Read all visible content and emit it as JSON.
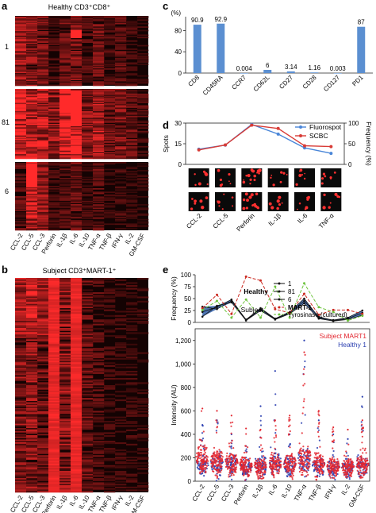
{
  "panels": {
    "a": {
      "letter": "a",
      "title": "Healthy CD3⁺CD8⁺",
      "row_labels": [
        "1",
        "81",
        "6"
      ]
    },
    "b": {
      "letter": "b",
      "title": "Subject CD3⁺MART-1⁺"
    },
    "c": {
      "letter": "c"
    },
    "d": {
      "letter": "d"
    },
    "e": {
      "letter": "e"
    }
  },
  "cytokines": [
    "CCL-2",
    "CCL-5",
    "CCL-3",
    "Perforin",
    "IL-1β",
    "IL-6",
    "IL-10",
    "TNF-α",
    "TNF-β",
    "IFN-γ",
    "IL-2",
    "GM-CSF"
  ],
  "d_cytokines": [
    "CCL-2",
    "CCL-5",
    "Perforin",
    "IL-1β",
    "IL-6",
    "TNF-α"
  ],
  "colors": {
    "heat_hi": "#ff2a2a",
    "heat_lo": "#140303",
    "bar": "#5b8fd1",
    "fluorospot": "#4a86d8",
    "scbc": "#d83b36",
    "mart1": "#cc2b22",
    "tyrosinase": "#6fc43f",
    "healthy_fill": "#2f5ea8",
    "healthy_line": "#111111",
    "violin_red": "#e3262f",
    "violin_blue": "#2b3fb0"
  },
  "chart_data": [
    {
      "panel": "a",
      "type": "heatmap",
      "title": "Healthy CD3⁺CD8⁺",
      "rows": [
        "1",
        "81",
        "6"
      ],
      "columns": [
        "CCL-2",
        "CCL-5",
        "CCL-3",
        "Perforin",
        "IL-1β",
        "IL-6",
        "IL-10",
        "TNF-α",
        "TNF-β",
        "IFN-γ",
        "IL-2",
        "GM-CSF"
      ],
      "column_mean_intensity": {
        "1": [
          0.55,
          0.45,
          0.35,
          0.15,
          0.3,
          0.4,
          0.2,
          0.35,
          0.2,
          0.25,
          0.15,
          0.1
        ],
        "81": [
          0.85,
          0.75,
          0.7,
          0.5,
          0.8,
          0.9,
          0.45,
          0.6,
          0.35,
          0.4,
          0.3,
          0.2
        ],
        "6": [
          0.25,
          0.65,
          0.5,
          0.15,
          0.2,
          0.3,
          0.15,
          0.25,
          0.1,
          0.15,
          0.1,
          0.08
        ]
      }
    },
    {
      "panel": "b",
      "type": "heatmap",
      "title": "Subject CD3⁺MART-1⁺",
      "columns": [
        "CCL-2",
        "CCL-5",
        "CCL-3",
        "Perforin",
        "IL-1β",
        "IL-6",
        "IL-10",
        "TNF-α",
        "TNF-β",
        "IFN-γ",
        "IL-2",
        "GM-CSF"
      ],
      "column_mean_intensity": [
        0.4,
        0.45,
        0.35,
        0.95,
        0.45,
        0.85,
        0.3,
        0.2,
        0.12,
        0.1,
        0.12,
        0.08
      ]
    },
    {
      "panel": "c",
      "type": "bar",
      "ylabel": "(%)",
      "categories": [
        "CD8",
        "CD45RA",
        "CCR7",
        "CD62L",
        "CD27",
        "CD28",
        "CD127",
        "PD1"
      ],
      "values": [
        90.9,
        92.9,
        0.004,
        6,
        3.14,
        1.16,
        0.003,
        87
      ],
      "data_labels": [
        "90.9",
        "92.9",
        "0.004",
        "6",
        "3.14",
        "1.16",
        "0.003",
        "87"
      ],
      "yticks": [
        "0",
        "40",
        "80"
      ],
      "ylim": [
        0,
        100
      ]
    },
    {
      "panel": "d",
      "type": "line",
      "x": [
        "CCL-2",
        "CCL-5",
        "Perforin",
        "IL-1β",
        "IL-6",
        "TNF-α"
      ],
      "ylabel": "Spots",
      "y2label": "Frequency (%)",
      "ylim": [
        0,
        30
      ],
      "yticks": [
        "0",
        "15",
        "30"
      ],
      "y2lim": [
        0,
        100
      ],
      "y2ticks": [
        "0",
        "50",
        "100"
      ],
      "series": [
        {
          "name": "Fluorospot",
          "axis": "y",
          "values": [
            11,
            14,
            29,
            22,
            12,
            8
          ]
        },
        {
          "name": "SCBC",
          "axis": "y2",
          "values": [
            35,
            47,
            95,
            87,
            45,
            43
          ]
        }
      ]
    },
    {
      "panel": "e-top",
      "type": "line",
      "ylabel": "Frequency (%)",
      "x": [
        "CCL-2",
        "CCL-5",
        "CCL-3",
        "Perforin",
        "IL-1β",
        "IL-6",
        "IL-10",
        "TNF-α",
        "TNF-β",
        "IFN-γ",
        "IL-2",
        "GM-CSF"
      ],
      "ylim": [
        0,
        100
      ],
      "yticks": [
        "0",
        "25",
        "50",
        "75",
        "100"
      ],
      "legend_groups": [
        "Healthy",
        "Subject"
      ],
      "series": [
        {
          "name": "1",
          "group": "Healthy",
          "values": [
            33,
            28,
            45,
            6,
            30,
            8,
            22,
            50,
            10,
            5,
            10,
            25
          ]
        },
        {
          "name": "81",
          "group": "Healthy",
          "values": [
            22,
            32,
            48,
            5,
            28,
            7,
            20,
            45,
            12,
            4,
            8,
            20
          ]
        },
        {
          "name": "6",
          "group": "Healthy",
          "values": [
            12,
            35,
            42,
            4,
            25,
            6,
            18,
            40,
            8,
            3,
            6,
            15
          ]
        },
        {
          "name": "MART-1",
          "group": "Subject",
          "values": [
            30,
            58,
            18,
            96,
            88,
            28,
            20,
            60,
            16,
            26,
            26,
            18
          ]
        },
        {
          "name": "Tyrosinase (cultured)",
          "group": "Subject",
          "values": [
            26,
            45,
            10,
            48,
            10,
            75,
            10,
            82,
            32,
            22,
            4,
            14
          ]
        }
      ]
    },
    {
      "panel": "e-bottom",
      "type": "scatter",
      "ylabel": "Intensity (AU)",
      "x": [
        "CCL-2",
        "CCL-5",
        "CCL-3",
        "Perforin",
        "IL-1β",
        "IL-6",
        "IL-10",
        "TNF-α",
        "TNF-β",
        "IFN-γ",
        "IL-2",
        "GM-CSF"
      ],
      "ylim": [
        0,
        1300
      ],
      "yticks": [
        "0",
        "200",
        "400",
        "600",
        "800",
        "1,000",
        "1,200"
      ],
      "series": [
        {
          "name": "Subject MART1",
          "max": [
            620,
            600,
            560,
            450,
            440,
            520,
            560,
            1100,
            600,
            460,
            440,
            520
          ],
          "median": [
            200,
            180,
            160,
            140,
            130,
            150,
            160,
            210,
            160,
            130,
            130,
            150
          ]
        },
        {
          "name": "Healthy 1",
          "max": [
            480,
            520,
            400,
            300,
            640,
            940,
            400,
            1200,
            520,
            400,
            360,
            720
          ],
          "median": [
            150,
            160,
            170,
            120,
            140,
            160,
            150,
            200,
            140,
            120,
            120,
            150
          ]
        }
      ]
    }
  ]
}
